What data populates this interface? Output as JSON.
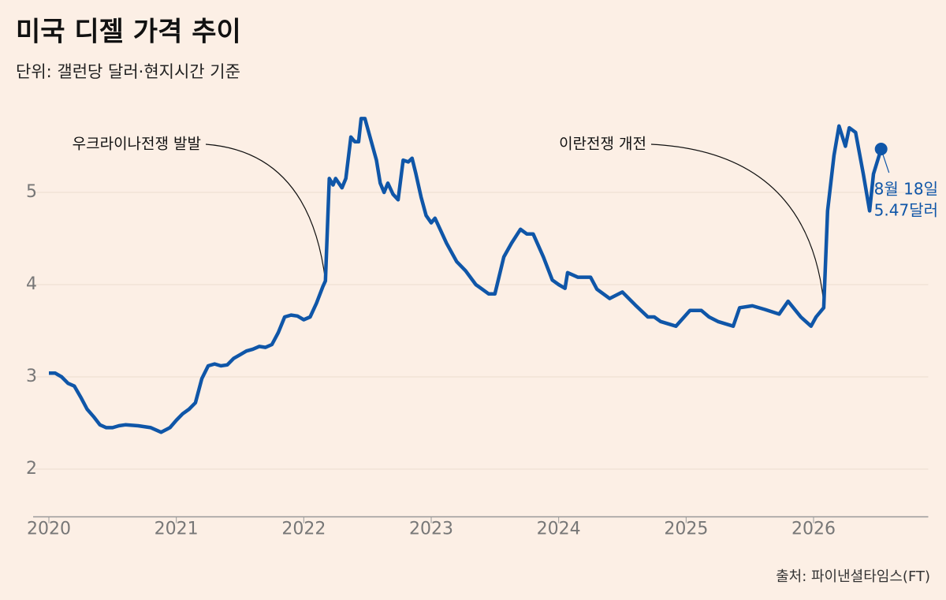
{
  "chart_data": {
    "type": "line",
    "title": "미국 디젤 가격 추이",
    "subtitle": "단위: 갤런당 달러·현지시간 기준",
    "source": "출처: 파이낸셜타임스(FT)",
    "x": [
      2020.0,
      2020.05,
      2020.1,
      2020.15,
      2020.2,
      2020.25,
      2020.3,
      2020.35,
      2020.4,
      2020.45,
      2020.5,
      2020.55,
      2020.6,
      2020.7,
      2020.8,
      2020.88,
      2020.95,
      2021.0,
      2021.05,
      2021.1,
      2021.15,
      2021.2,
      2021.25,
      2021.3,
      2021.35,
      2021.4,
      2021.45,
      2021.5,
      2021.55,
      2021.6,
      2021.65,
      2021.7,
      2021.75,
      2021.8,
      2021.85,
      2021.9,
      2021.95,
      2022.0,
      2022.05,
      2022.1,
      2022.15,
      2022.17,
      2022.2,
      2022.23,
      2022.25,
      2022.3,
      2022.33,
      2022.37,
      2022.4,
      2022.43,
      2022.45,
      2022.48,
      2022.52,
      2022.57,
      2022.6,
      2022.63,
      2022.66,
      2022.7,
      2022.74,
      2022.78,
      2022.82,
      2022.85,
      2022.88,
      2022.92,
      2022.96,
      2023.0,
      2023.03,
      2023.07,
      2023.12,
      2023.2,
      2023.27,
      2023.35,
      2023.4,
      2023.45,
      2023.5,
      2023.57,
      2023.63,
      2023.7,
      2023.75,
      2023.8,
      2023.88,
      2023.95,
      2024.0,
      2024.05,
      2024.07,
      2024.15,
      2024.25,
      2024.3,
      2024.4,
      2024.5,
      2024.6,
      2024.7,
      2024.75,
      2024.8,
      2024.92,
      2025.03,
      2025.12,
      2025.18,
      2025.25,
      2025.37,
      2025.42,
      2025.52,
      2025.62,
      2025.73,
      2025.8,
      2025.9,
      2025.98,
      2026.02,
      2026.08,
      2026.11,
      2026.16,
      2026.2,
      2026.25,
      2026.28,
      2026.33,
      2026.39,
      2026.44,
      2026.47,
      2026.53
    ],
    "series": [
      {
        "name": "디젤 가격",
        "color": "#0f56a8",
        "values": [
          3.04,
          3.04,
          3.0,
          2.93,
          2.9,
          2.78,
          2.65,
          2.57,
          2.48,
          2.45,
          2.45,
          2.47,
          2.48,
          2.47,
          2.45,
          2.4,
          2.45,
          2.53,
          2.6,
          2.65,
          2.72,
          2.98,
          3.12,
          3.14,
          3.12,
          3.13,
          3.2,
          3.24,
          3.28,
          3.3,
          3.33,
          3.32,
          3.35,
          3.48,
          3.65,
          3.67,
          3.66,
          3.62,
          3.65,
          3.8,
          3.98,
          4.04,
          5.15,
          5.08,
          5.15,
          5.05,
          5.15,
          5.6,
          5.55,
          5.55,
          5.8,
          5.8,
          5.6,
          5.35,
          5.1,
          5.0,
          5.1,
          4.98,
          4.92,
          5.35,
          5.33,
          5.37,
          5.2,
          4.95,
          4.75,
          4.67,
          4.72,
          4.6,
          4.45,
          4.25,
          4.15,
          4.0,
          3.95,
          3.9,
          3.9,
          4.3,
          4.45,
          4.6,
          4.55,
          4.55,
          4.3,
          4.05,
          4.0,
          3.96,
          4.13,
          4.08,
          4.08,
          3.95,
          3.85,
          3.92,
          3.78,
          3.65,
          3.65,
          3.6,
          3.55,
          3.72,
          3.72,
          3.65,
          3.6,
          3.55,
          3.75,
          3.77,
          3.73,
          3.68,
          3.82,
          3.65,
          3.55,
          3.65,
          3.75,
          4.8,
          5.4,
          5.72,
          5.5,
          5.7,
          5.65,
          5.2,
          4.8,
          5.2,
          5.47
        ]
      }
    ],
    "xlim": [
      2020,
      2026.9
    ],
    "xticks": [
      2020,
      2021,
      2022,
      2023,
      2024,
      2025,
      2026
    ],
    "ylim": [
      1.5,
      6.0
    ],
    "yticks": [
      2,
      3,
      4,
      5
    ],
    "grid": true,
    "annotations": [
      {
        "text": "우크라이나전쟁 발발",
        "x": 2022.17,
        "y": 4.04
      },
      {
        "text": "이란전쟁 개전",
        "x": 2026.08,
        "y": 3.8
      }
    ],
    "end_label": [
      "8월 18일",
      "5.47달러"
    ]
  }
}
